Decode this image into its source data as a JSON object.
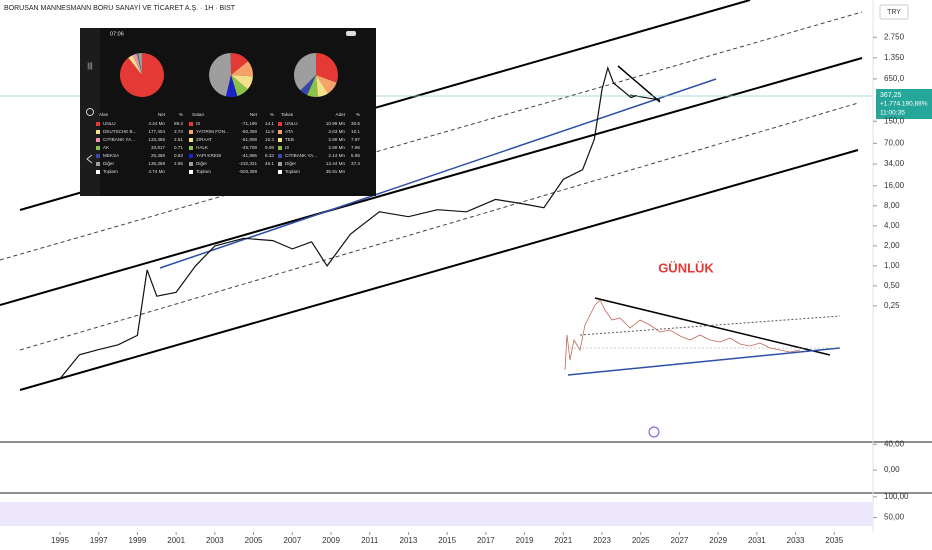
{
  "title": "BORUSAN MANNESMANN BORU SANAYİ VE TİCARET A.Ş. · 1H · BIST",
  "currency": "TRY",
  "annotation": "GÜNLÜK",
  "price_tag": {
    "price": "367,25",
    "change": "+1.774.190,88%",
    "countdown": "11:00:35"
  },
  "chart_data": [
    {
      "type": "line",
      "log_scale": true,
      "color": "#111111",
      "x": [
        1995,
        1996,
        1997,
        1998,
        1999,
        1999.5,
        2000,
        2001,
        2002,
        2003,
        2004.5,
        2006,
        2007,
        2008,
        2008.8,
        2010,
        2011.5,
        2013,
        2014.5,
        2016,
        2017.5,
        2019,
        2020,
        2021,
        2022,
        2022.6,
        2023,
        2023.3,
        2023.6,
        2024,
        2024.5,
        2024.8
      ],
      "values": [
        0.02,
        0.046,
        0.055,
        0.065,
        0.09,
        0.87,
        0.35,
        0.4,
        1,
        2,
        2.6,
        2.4,
        1.8,
        2.3,
        1,
        3,
        6.5,
        5.5,
        7,
        6.5,
        10,
        8.5,
        7.5,
        20,
        28,
        80,
        450,
        950,
        560,
        450,
        340,
        367.25
      ],
      "xlim": [
        1991.9,
        2037
      ],
      "xticks": [
        1995,
        1997,
        1999,
        2001,
        2003,
        2005,
        2007,
        2009,
        2011,
        2013,
        2015,
        2017,
        2019,
        2021,
        2023,
        2025,
        2027,
        2029,
        2031,
        2033,
        2035
      ],
      "ylim": [
        0.0024,
        10000
      ],
      "yticks": [
        {
          "value": 2750,
          "label": "2.750"
        },
        {
          "value": 1350,
          "label": "1.350"
        },
        {
          "value": 650,
          "label": "650,0"
        },
        {
          "value": 150,
          "label": "150,0"
        },
        {
          "value": 70,
          "label": "70,00"
        },
        {
          "value": 34,
          "label": "34,00"
        },
        {
          "value": 16,
          "label": "16,00"
        },
        {
          "value": 8,
          "label": "8,00"
        },
        {
          "value": 4,
          "label": "4,00"
        },
        {
          "value": 2,
          "label": "2,00"
        },
        {
          "value": 1,
          "label": "1,00"
        },
        {
          "value": 0.5,
          "label": "0,50"
        },
        {
          "value": 0.25,
          "label": "0,25"
        }
      ]
    },
    {
      "type": "line",
      "ylim": [
        -34,
        42
      ],
      "yticks": [
        {
          "value": 40,
          "label": "40,00"
        },
        {
          "value": 0,
          "label": "0,00"
        }
      ]
    },
    {
      "type": "line",
      "ylim": [
        15,
        107
      ],
      "yticks": [
        {
          "value": 100,
          "label": "100,00"
        },
        {
          "value": 50,
          "label": "50,00"
        }
      ]
    }
  ],
  "overlay": {
    "time": "07:06",
    "tables": [
      {
        "headers": [
          "Alan",
          "Net",
          "%"
        ],
        "rows": [
          [
            "UNLU",
            "4.24 Mn",
            89.3
          ],
          [
            "DEUTSCHE B...",
            "177,404",
            3.74
          ],
          [
            "CITIBANK YA...",
            "133,386",
            2.81
          ],
          [
            "AK",
            "33,817",
            0.71
          ],
          [
            "MEKSA",
            "25,368",
            0.53
          ],
          [
            "Diğer",
            "135,368",
            2.85
          ]
        ],
        "colors": [
          "#e53935",
          "#f5e08a",
          "#f48fb1",
          "#8bc34a",
          "#3949ab",
          "#9e9e9e"
        ],
        "total": [
          "Toplam",
          "4.74 Mn"
        ]
      },
      {
        "headers": [
          "Satan",
          "Net",
          "%"
        ],
        "rows": [
          [
            "IS",
            "-71,196",
            14.1
          ],
          [
            "YATIRIM FON...",
            "-60,359",
            11.9
          ],
          [
            "ZIRAAT",
            "-51,908",
            10.3
          ],
          [
            "HALK",
            "-45,709",
            9.08
          ],
          [
            "YAPI KREDI",
            "-41,895",
            8.32
          ],
          [
            "Diğer",
            "-232,331",
            46.1
          ]
        ],
        "colors": [
          "#e53935",
          "#f5a36a",
          "#f5e08a",
          "#8bc34a",
          "#1a23c9",
          "#9e9e9e"
        ],
        "total": [
          "Toplam",
          "-503,398"
        ]
      },
      {
        "headers": [
          "Takas",
          "Adet",
          "%"
        ],
        "rows": [
          [
            "UNLU",
            "10.99 Mn",
            30.6
          ],
          [
            "ATA",
            "3.63 Mn",
            10.1
          ],
          [
            "TEB",
            "2.86 Mn",
            7.97
          ],
          [
            "IS",
            "2.86 Mn",
            7.96
          ],
          [
            "CITIBANK YA...",
            "2.14 Mn",
            5.95
          ],
          [
            "Diğer",
            "13.44 Mn",
            37.4
          ]
        ],
        "colors": [
          "#e53935",
          "#f5a36a",
          "#f5e08a",
          "#8bc34a",
          "#3949ab",
          "#9e9e9e"
        ],
        "total": [
          "Toplam",
          "35.91 Mn"
        ]
      }
    ]
  }
}
